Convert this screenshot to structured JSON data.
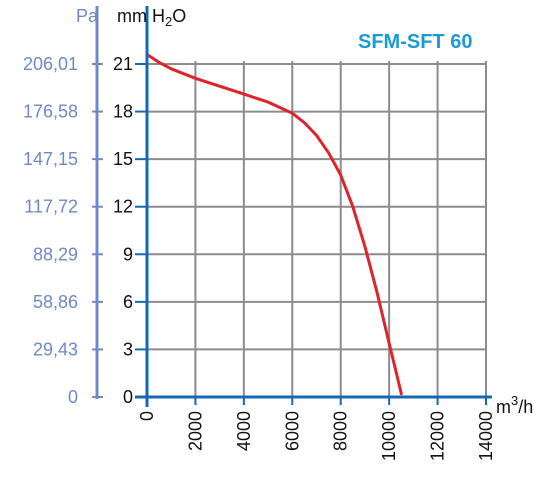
{
  "chart_data": {
    "type": "line",
    "title": "SFM-SFT 60",
    "xlabel_prefix": "m",
    "xlabel_sup": "3",
    "xlabel_suffix": "/h",
    "ylabel_prefix": "mm H",
    "ylabel_sub": "2",
    "ylabel_suffix": "O",
    "ylabel_secondary": "Pa",
    "xlim": [
      0,
      14000
    ],
    "ylim": [
      0,
      24
    ],
    "x_ticks": [
      "0",
      "2000",
      "4000",
      "6000",
      "8000",
      "10000",
      "12000",
      "14000"
    ],
    "y_ticks": [
      "0",
      "3",
      "6",
      "9",
      "12",
      "15",
      "18",
      "21"
    ],
    "y_secondary_ticks": [
      "0",
      "29,43",
      "58,86",
      "88,29",
      "117,72",
      "147,15",
      "176,58",
      "206,01"
    ],
    "grid": true,
    "colors": {
      "curve": "#e0232b",
      "axis": "#1667b5",
      "secondary_axis": "#6f89c6",
      "grid": "#8c8c8c",
      "title": "#1a9ad6"
    },
    "series": [
      {
        "x": [
          0,
          500,
          1000,
          2000,
          3000,
          4000,
          5000,
          6000,
          6500,
          7000,
          7500,
          8000,
          8500,
          9000,
          9500,
          10000,
          10300,
          10500
        ],
        "y": [
          21.6,
          21.1,
          20.7,
          20.1,
          19.6,
          19.1,
          18.6,
          17.9,
          17.3,
          16.5,
          15.4,
          14.0,
          12.0,
          9.5,
          6.6,
          3.4,
          1.5,
          0.2
        ]
      }
    ]
  }
}
